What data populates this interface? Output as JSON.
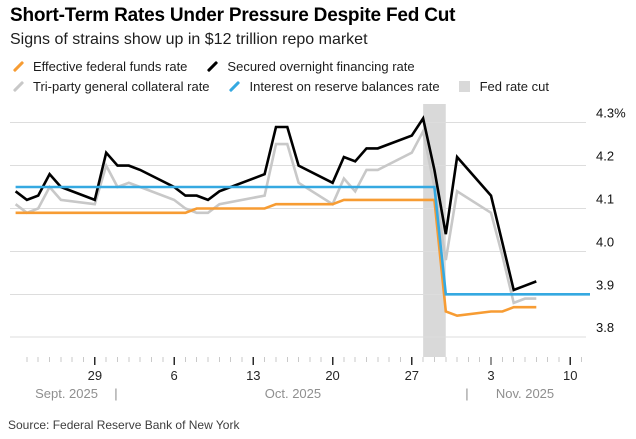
{
  "header": {
    "title": "Short-Term Rates Under Pressure Despite Fed Cut",
    "subtitle": "Signs of strains show up in $12 trillion repo market"
  },
  "source": "Source: Federal Reserve Bank of New York",
  "colors": {
    "effr_orange": "#f79c33",
    "sofr_black": "#000000",
    "tgcr_gray": "#c8c8c8",
    "iorb_blue": "#35a9e1",
    "band_gray": "#d9d9d9",
    "gridline": "#dddddd",
    "minor_tick": "#c9c9c9",
    "major_tick": "#2b2b2b",
    "day_label": "#262626",
    "month_label": "#8f8f8f",
    "y_label": "#111111"
  },
  "legend": {
    "rows": [
      [
        {
          "id": "effr",
          "label": "Effective federal funds rate",
          "swatch": "line",
          "color": "#f79c33"
        },
        {
          "id": "sofr",
          "label": "Secured overnight financing rate",
          "swatch": "line",
          "color": "#000000"
        }
      ],
      [
        {
          "id": "tgcr",
          "label": "Tri-party general collateral rate",
          "swatch": "line",
          "color": "#c8c8c8"
        },
        {
          "id": "iorb",
          "label": "Interest on reserve balances rate",
          "swatch": "line",
          "color": "#35a9e1"
        },
        {
          "id": "cut",
          "label": "Fed rate cut",
          "swatch": "square",
          "color": "#d9d9d9"
        }
      ]
    ]
  },
  "chart_data": {
    "type": "line",
    "title": "Short-Term Rates Under Pressure Despite Fed Cut",
    "subtitle": "Signs of strains show up in $12 trillion repo market",
    "x_unit": "date (2025)",
    "x_range": [
      "Sep 22",
      "Nov 12"
    ],
    "ylim": [
      3.75,
      4.32
    ],
    "y_unit": "percent",
    "grid": true,
    "legend_position": "top",
    "dates": [
      "Sep 22",
      "Sep 23",
      "Sep 24",
      "Sep 25",
      "Sep 26",
      "Sep 29",
      "Sep 30",
      "Oct 1",
      "Oct 2",
      "Oct 3",
      "Oct 6",
      "Oct 7",
      "Oct 8",
      "Oct 9",
      "Oct 10",
      "Oct 14",
      "Oct 15",
      "Oct 16",
      "Oct 17",
      "Oct 20",
      "Oct 21",
      "Oct 22",
      "Oct 23",
      "Oct 24",
      "Oct 27",
      "Oct 28",
      "Oct 29",
      "Oct 30",
      "Oct 31",
      "Nov 3",
      "Nov 4",
      "Nov 5",
      "Nov 6",
      "Nov 7"
    ],
    "day_offsets": [
      0,
      1,
      2,
      3,
      4,
      7,
      8,
      9,
      10,
      11,
      14,
      15,
      16,
      17,
      18,
      22,
      23,
      24,
      25,
      28,
      29,
      30,
      31,
      32,
      35,
      36,
      37,
      38,
      39,
      42,
      43,
      44,
      45,
      46
    ],
    "series": [
      {
        "id": "tgcr",
        "name": "Tri-party general collateral rate",
        "color": "#c8c8c8",
        "values": [
          4.11,
          4.09,
          4.1,
          4.15,
          4.12,
          4.11,
          4.2,
          4.15,
          4.16,
          4.15,
          4.12,
          4.1,
          4.09,
          4.09,
          4.11,
          4.13,
          4.25,
          4.25,
          4.16,
          4.11,
          4.17,
          4.14,
          4.19,
          4.19,
          4.23,
          4.28,
          4.15,
          3.98,
          4.14,
          4.09,
          3.99,
          3.88,
          3.89,
          3.89
        ]
      },
      {
        "id": "effr",
        "name": "Effective federal funds rate",
        "color": "#f79c33",
        "values": [
          4.09,
          4.09,
          4.09,
          4.09,
          4.09,
          4.09,
          4.09,
          4.09,
          4.09,
          4.09,
          4.09,
          4.09,
          4.1,
          4.1,
          4.1,
          4.1,
          4.11,
          4.11,
          4.11,
          4.11,
          4.12,
          4.12,
          4.12,
          4.12,
          4.12,
          4.12,
          4.12,
          3.86,
          3.85,
          3.86,
          3.86,
          3.87,
          3.87,
          3.87
        ]
      },
      {
        "id": "sofr",
        "name": "Secured overnight financing rate",
        "color": "#000000",
        "values": [
          4.14,
          4.12,
          4.13,
          4.18,
          4.15,
          4.12,
          4.23,
          4.2,
          4.2,
          4.19,
          4.15,
          4.13,
          4.13,
          4.12,
          4.14,
          4.18,
          4.29,
          4.29,
          4.2,
          4.16,
          4.22,
          4.21,
          4.24,
          4.24,
          4.27,
          4.31,
          4.19,
          4.04,
          4.22,
          4.13,
          4.02,
          3.91,
          3.92,
          3.93
        ]
      },
      {
        "id": "iorb",
        "name": "Interest on reserve balances rate",
        "color": "#35a9e1",
        "extend_right": true,
        "values": [
          4.15,
          4.15,
          4.15,
          4.15,
          4.15,
          4.15,
          4.15,
          4.15,
          4.15,
          4.15,
          4.15,
          4.15,
          4.15,
          4.15,
          4.15,
          4.15,
          4.15,
          4.15,
          4.15,
          4.15,
          4.15,
          4.15,
          4.15,
          4.15,
          4.15,
          4.15,
          4.15,
          3.9,
          3.9,
          3.9,
          3.9,
          3.9,
          3.9,
          3.9
        ]
      }
    ],
    "band": {
      "label": "Fed rate cut",
      "start_date": "Oct 28",
      "end_date": "Oct 30",
      "start_offset": 36,
      "end_offset": 38,
      "color": "#d9d9d9"
    },
    "y_axis": {
      "side": "right",
      "ticks": [
        4.3,
        4.2,
        4.1,
        4.0,
        3.9,
        3.8
      ],
      "labels": [
        "4.3%",
        "4.2",
        "4.1",
        "4.0",
        "3.9",
        "3.8"
      ]
    },
    "x_axis": {
      "major_tick_labels": [
        "29",
        "6",
        "13",
        "20",
        "27",
        "3",
        "10"
      ],
      "major_tick_offsets": [
        7,
        14,
        21,
        28,
        35,
        42,
        49
      ],
      "minor_tick_offsets_range": [
        1,
        50
      ],
      "months": [
        {
          "label": "Sept. 2025",
          "center_offset": 4.5
        },
        {
          "label": "Oct. 2025",
          "center_offset": 24.5
        },
        {
          "label": "Nov. 2025",
          "center_offset": 45
        }
      ],
      "month_separator": "|",
      "month_separator_offsets": [
        9,
        40
      ]
    }
  }
}
